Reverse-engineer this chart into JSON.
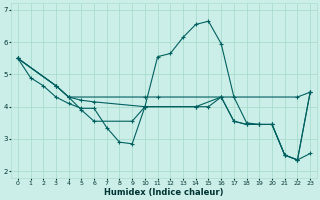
{
  "xlabel": "Humidex (Indice chaleur)",
  "bg_color": "#cceee8",
  "grid_color": "#aaddcc",
  "line_color": "#006060",
  "xlim": [
    -0.5,
    23.5
  ],
  "ylim": [
    1.8,
    7.2
  ],
  "yticks": [
    2,
    3,
    4,
    5,
    6,
    7
  ],
  "xticks": [
    0,
    1,
    2,
    3,
    4,
    5,
    6,
    7,
    8,
    9,
    10,
    11,
    12,
    13,
    14,
    15,
    16,
    17,
    18,
    19,
    20,
    21,
    22,
    23
  ],
  "lines": [
    {
      "x": [
        0,
        1,
        2,
        3,
        4,
        5,
        6,
        7,
        8,
        9,
        10,
        11,
        12,
        13,
        14,
        15,
        16,
        17,
        18,
        19,
        20,
        21,
        22,
        23
      ],
      "y": [
        5.5,
        4.9,
        4.65,
        4.3,
        4.1,
        3.95,
        3.95,
        3.35,
        2.9,
        2.85,
        4.0,
        5.55,
        5.65,
        6.15,
        6.55,
        6.65,
        5.95,
        4.3,
        3.5,
        3.45,
        3.45,
        2.5,
        2.35,
        2.55
      ]
    },
    {
      "x": [
        0,
        3,
        4,
        10,
        11,
        16,
        22,
        23
      ],
      "y": [
        5.5,
        4.65,
        4.3,
        4.3,
        4.3,
        4.3,
        4.3,
        4.45
      ]
    },
    {
      "x": [
        0,
        3,
        4,
        5,
        6,
        9,
        10,
        14,
        16,
        17,
        18,
        19,
        20,
        21,
        22,
        23
      ],
      "y": [
        5.5,
        4.65,
        4.3,
        3.9,
        3.55,
        3.55,
        4.0,
        4.0,
        4.3,
        3.55,
        3.45,
        3.45,
        3.45,
        2.5,
        2.35,
        4.45
      ]
    },
    {
      "x": [
        0,
        3,
        4,
        5,
        6,
        10,
        14,
        15,
        16,
        17,
        18,
        19,
        20,
        21,
        22,
        23
      ],
      "y": [
        5.5,
        4.65,
        4.3,
        4.2,
        4.15,
        4.0,
        4.0,
        4.0,
        4.3,
        3.55,
        3.45,
        3.45,
        3.45,
        2.5,
        2.35,
        4.45
      ]
    }
  ]
}
